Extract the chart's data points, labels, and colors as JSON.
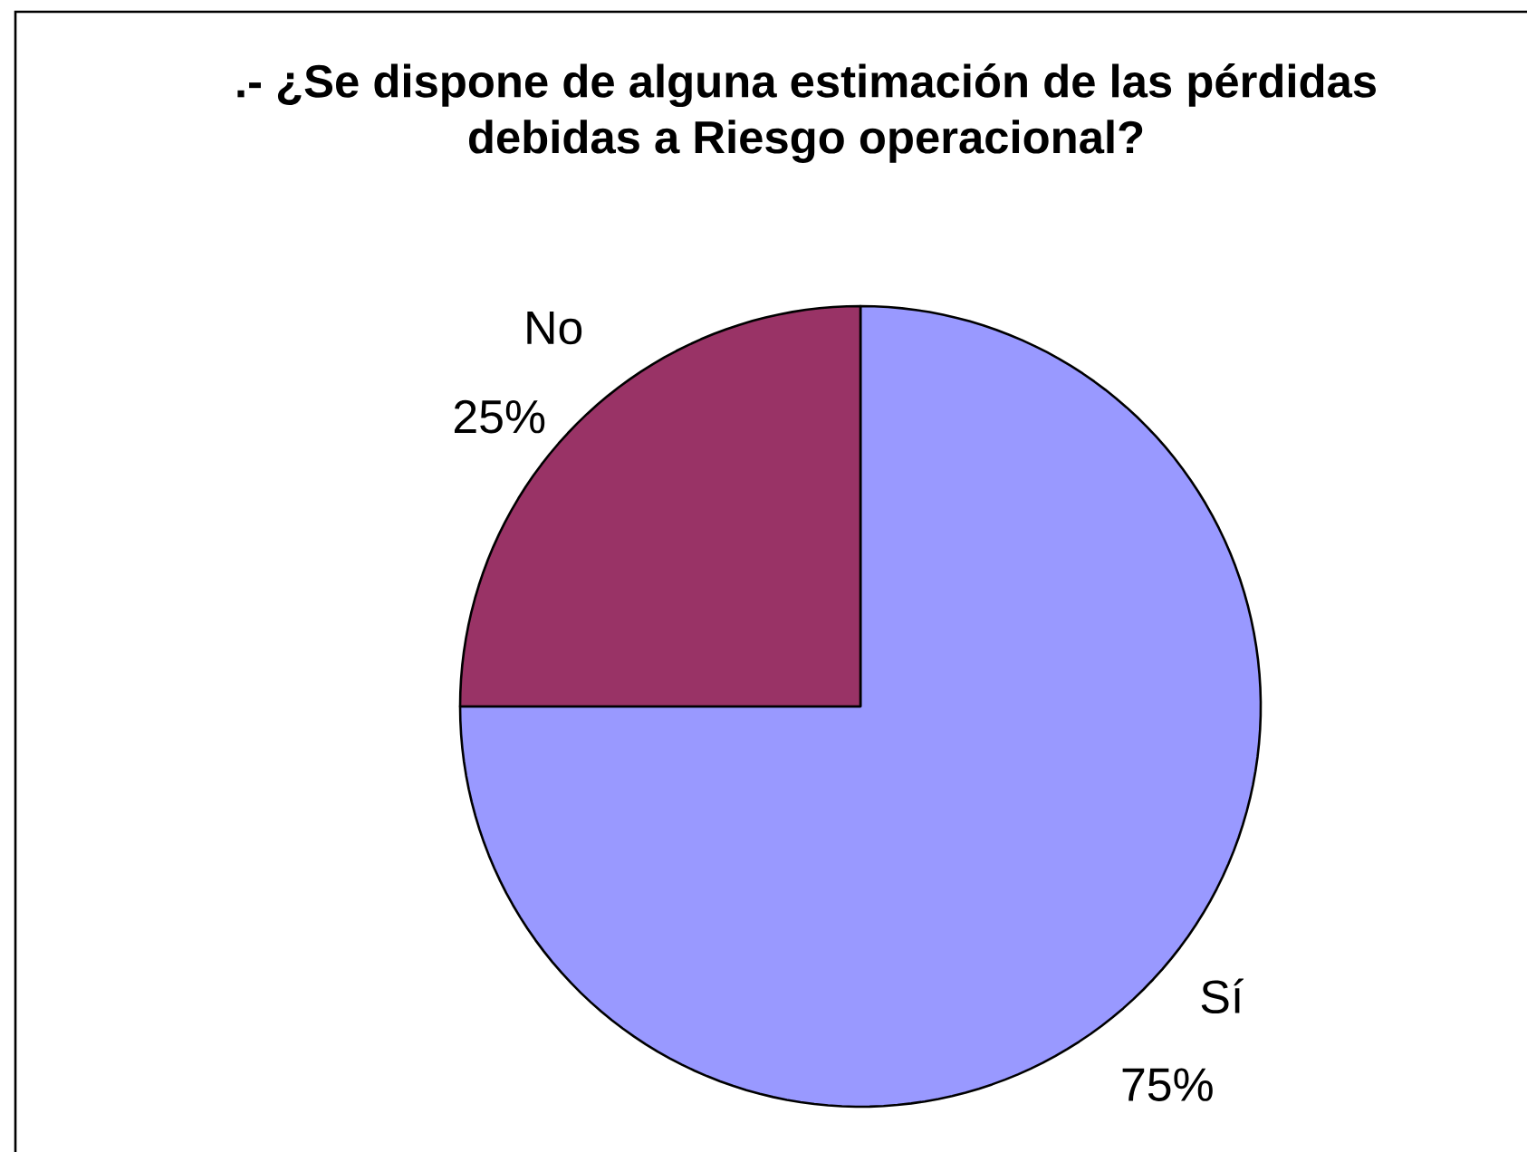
{
  "chart_data": {
    "type": "pie",
    "title": ".- ¿Se dispone de alguna estimación de las pérdidas debidas a Riesgo operacional?",
    "categories": [
      "Sí",
      "No"
    ],
    "values": [
      75,
      25
    ],
    "colors": [
      "#9999ff",
      "#993366"
    ],
    "value_labels": [
      "75%",
      "25%"
    ]
  }
}
